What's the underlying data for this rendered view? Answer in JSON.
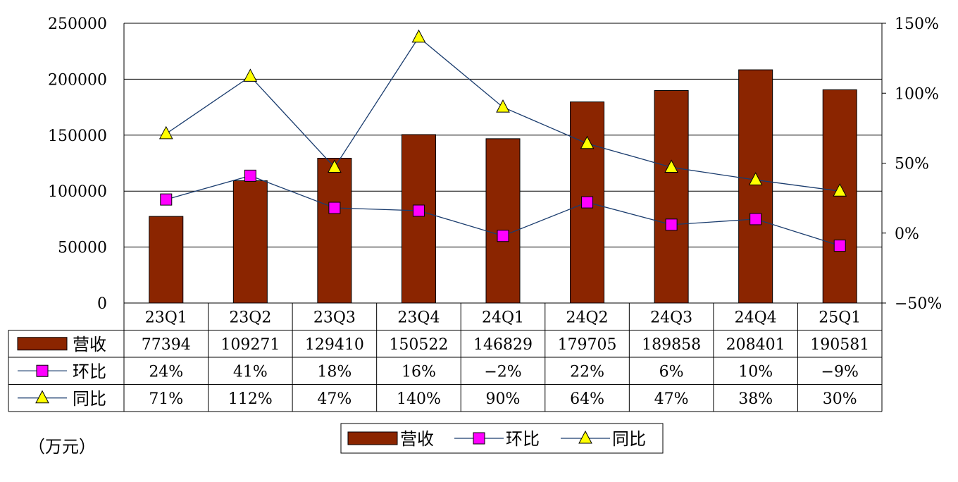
{
  "chart_data": {
    "type": "bar",
    "categories": [
      "23Q1",
      "23Q2",
      "23Q3",
      "23Q4",
      "24Q1",
      "24Q2",
      "24Q3",
      "24Q4",
      "25Q1"
    ],
    "series": [
      {
        "name": "营收",
        "type": "bar",
        "axis": "left",
        "color": "#8b2500",
        "values": [
          77394,
          109271,
          129410,
          150522,
          146829,
          179705,
          189858,
          208401,
          190581
        ]
      },
      {
        "name": "环比",
        "type": "line",
        "axis": "right",
        "marker": "square",
        "color": "#ff00ff",
        "values": [
          24,
          41,
          18,
          16,
          -2,
          22,
          6,
          10,
          -9
        ]
      },
      {
        "name": "同比",
        "type": "line",
        "axis": "right",
        "marker": "triangle",
        "color": "#ffff00",
        "values": [
          71,
          112,
          47,
          140,
          90,
          64,
          47,
          38,
          30
        ]
      }
    ],
    "table": {
      "rows": [
        {
          "label": "营收",
          "cells": [
            "77394",
            "109271",
            "129410",
            "150522",
            "146829",
            "179705",
            "189858",
            "208401",
            "190581"
          ]
        },
        {
          "label": "环比",
          "cells": [
            "24%",
            "41%",
            "18%",
            "16%",
            "−2%",
            "22%",
            "6%",
            "10%",
            "−9%"
          ]
        },
        {
          "label": "同比",
          "cells": [
            "71%",
            "112%",
            "47%",
            "140%",
            "90%",
            "64%",
            "47%",
            "38%",
            "30%"
          ]
        }
      ]
    },
    "left_axis": {
      "ticks": [
        "250000",
        "200000",
        "150000",
        "100000",
        "50000",
        "0"
      ],
      "ylim": [
        0,
        250000
      ]
    },
    "right_axis": {
      "ticks": [
        "150%",
        "100%",
        "50%",
        "0%",
        "−50%"
      ],
      "ylim": [
        -50,
        150
      ]
    },
    "unit_note": "（万元）",
    "legend": [
      "营收",
      "环比",
      "同比"
    ],
    "legend_placement": "bottom-center",
    "grid": true,
    "colors": {
      "bar": "#8b2500",
      "line": "#1a3c6e",
      "square": "#ff00ff",
      "triangle": "#ffff00"
    }
  }
}
